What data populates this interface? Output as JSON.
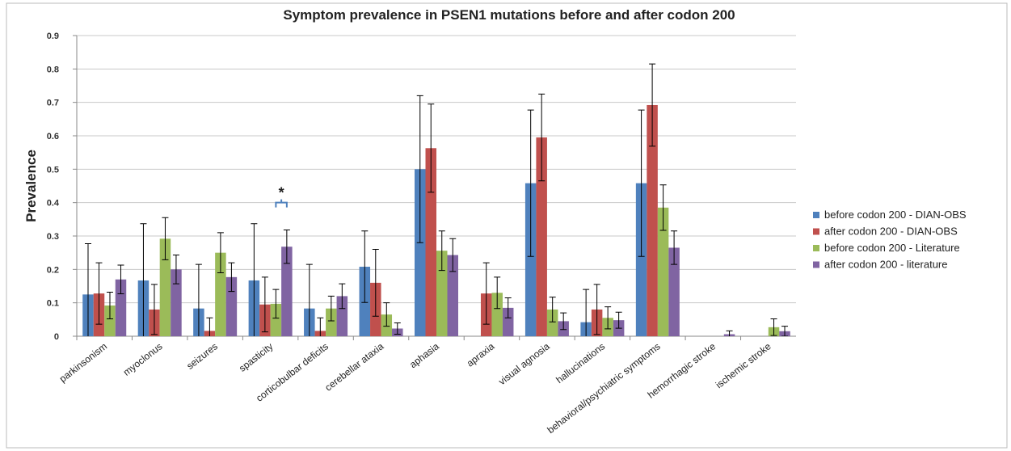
{
  "chart_data": {
    "type": "bar",
    "title": "Symptom prevalence in PSEN1 mutations before and after codon 200",
    "y_label": "Prevalence",
    "annotation": "*",
    "categories": [
      "parkinsonism",
      "myoclonus",
      "seizures",
      "spasticity",
      "corticobulbar deficits",
      "cerebellar ataxia",
      "aphasia",
      "apraxia",
      "visual agnosia",
      "hallucinations",
      "behavioral/psychiatric symptoms",
      "hemorrhagic stroke",
      "ischemic stroke"
    ],
    "series": [
      {
        "name": "before codon 200 - DIAN-OBS",
        "color": "#4f81bd",
        "values": [
          0.125,
          0.167,
          0.083,
          0.167,
          0.083,
          0.208,
          0.5,
          0,
          0.458,
          0.042,
          0.458,
          0,
          0
        ],
        "errors": [
          0.152,
          0.17,
          0.132,
          0.17,
          0.132,
          0.107,
          0.22,
          0,
          0.219,
          0.098,
          0.219,
          0,
          0
        ]
      },
      {
        "name": "after codon 200 - DIAN-OBS",
        "color": "#c0504d",
        "values": [
          0.128,
          0.08,
          0.016,
          0.095,
          0.016,
          0.16,
          0.563,
          0.128,
          0.595,
          0.08,
          0.692,
          0,
          0
        ],
        "errors": [
          0.092,
          0.075,
          0.039,
          0.082,
          0.039,
          0.1,
          0.132,
          0.092,
          0.13,
          0.075,
          0.123,
          0,
          0
        ]
      },
      {
        "name": "before codon 200 - Literature",
        "color": "#9bbb59",
        "values": [
          0.092,
          0.292,
          0.25,
          0.097,
          0.083,
          0.065,
          0.256,
          0.13,
          0.08,
          0.055,
          0.385,
          0,
          0.027
        ],
        "errors": [
          0.04,
          0.063,
          0.06,
          0.043,
          0.037,
          0.035,
          0.059,
          0.047,
          0.037,
          0.033,
          0.068,
          0,
          0.025
        ]
      },
      {
        "name": "after codon 200 - literature",
        "color": "#8064a2",
        "values": [
          0.17,
          0.2,
          0.177,
          0.268,
          0.12,
          0.023,
          0.243,
          0.085,
          0.045,
          0.048,
          0.265,
          0.006,
          0.015
        ],
        "errors": [
          0.043,
          0.043,
          0.043,
          0.05,
          0.037,
          0.017,
          0.049,
          0.03,
          0.025,
          0.024,
          0.05,
          0.01,
          0.015
        ]
      }
    ],
    "ylim": [
      0,
      0.9
    ],
    "yticks": [
      0,
      0.1,
      0.2,
      0.3,
      0.4,
      0.5,
      0.6,
      0.7,
      0.8,
      0.9
    ],
    "grid": true,
    "legend": "right"
  }
}
